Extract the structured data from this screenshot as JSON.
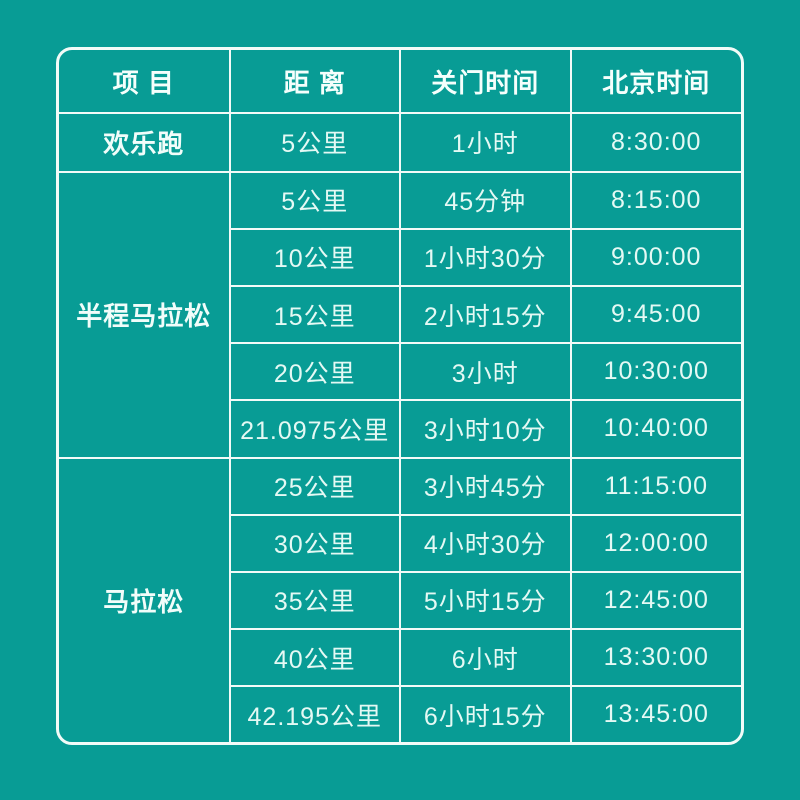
{
  "style": {
    "background_color": "#089c95",
    "grid_line_color": "#f2fbf8",
    "body_text_color": "#e4f9f4",
    "header_text_color": "#f5fffc"
  },
  "chart_data": {
    "type": "table",
    "columns": [
      "项 目",
      "距 离",
      "关门时间",
      "北京时间"
    ],
    "groups": [
      {
        "label": "欢乐跑",
        "rows": [
          [
            "5公里",
            "1小时",
            "8:30:00"
          ]
        ]
      },
      {
        "label": "半程马拉松",
        "rows": [
          [
            "5公里",
            "45分钟",
            "8:15:00"
          ],
          [
            "10公里",
            "1小时30分",
            "9:00:00"
          ],
          [
            "15公里",
            "2小时15分",
            "9:45:00"
          ],
          [
            "20公里",
            "3小时",
            "10:30:00"
          ],
          [
            "21.0975公里",
            "3小时10分",
            "10:40:00"
          ]
        ]
      },
      {
        "label": "马拉松",
        "rows": [
          [
            "25公里",
            "3小时45分",
            "11:15:00"
          ],
          [
            "30公里",
            "4小时30分",
            "12:00:00"
          ],
          [
            "35公里",
            "5小时15分",
            "12:45:00"
          ],
          [
            "40公里",
            "6小时",
            "13:30:00"
          ],
          [
            "42.195公里",
            "6小时15分",
            "13:45:00"
          ]
        ]
      }
    ],
    "layout": {
      "grid": "on",
      "merged_first_column": true,
      "corner_radius": "rounded outer border"
    }
  }
}
